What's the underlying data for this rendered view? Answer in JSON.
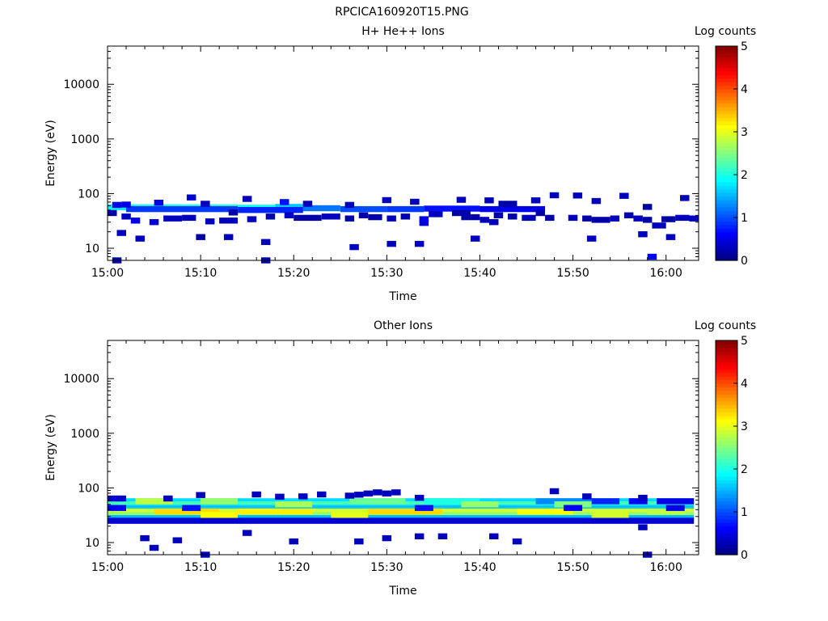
{
  "page_title": "RPCICA160920T15.PNG",
  "chart_data": [
    {
      "type": "heatmap",
      "title": "H+ He++ Ions",
      "xlabel": "Time",
      "ylabel": "Energy (eV)",
      "x_ticks": [
        "15:00",
        "15:10",
        "15:20",
        "15:30",
        "15:40",
        "15:50",
        "16:00"
      ],
      "xlim_minutes_after_1500": [
        0,
        63.5
      ],
      "y_scale": "log",
      "ylim": [
        6,
        50000
      ],
      "y_ticks": [
        10,
        100,
        1000,
        10000
      ],
      "y_tick_labels": [
        "10",
        "100",
        "1000",
        "10000"
      ],
      "colorbar": {
        "label": "Log counts",
        "range": [
          0,
          5
        ],
        "ticks": [
          "0",
          "1",
          "2",
          "3",
          "4",
          "5"
        ],
        "colormap": "jet"
      },
      "cells": [
        [
          0,
          2,
          56,
          1.8
        ],
        [
          2,
          8,
          56,
          2.0
        ],
        [
          8,
          14,
          56,
          2.1
        ],
        [
          14,
          18,
          55,
          1.9
        ],
        [
          18,
          21,
          57,
          1.6
        ],
        [
          21,
          25,
          54,
          1.2
        ],
        [
          25,
          30,
          52,
          1.0
        ],
        [
          30,
          34,
          52,
          0.9
        ],
        [
          34,
          40,
          53,
          0.7
        ],
        [
          40,
          47,
          52,
          0.5
        ],
        [
          2,
          14,
          52,
          0.9
        ],
        [
          14,
          21,
          50,
          0.8
        ],
        [
          0.5,
          1.5,
          62,
          0.5
        ],
        [
          1.5,
          2.5,
          63,
          0.5
        ],
        [
          5,
          6,
          68,
          0.5
        ],
        [
          8.5,
          9.5,
          85,
          0.4
        ],
        [
          10,
          11,
          65,
          0.3
        ],
        [
          14.5,
          15.5,
          80,
          0.3
        ],
        [
          18.5,
          19.5,
          70,
          0.7
        ],
        [
          21,
          22,
          65,
          0.3
        ],
        [
          25.5,
          26.5,
          62,
          0.3
        ],
        [
          29.5,
          30.5,
          76,
          0.3
        ],
        [
          32.5,
          33.5,
          71,
          0.3
        ],
        [
          37.5,
          38.5,
          77,
          0.3
        ],
        [
          40.5,
          41.5,
          75,
          0.3
        ],
        [
          42,
          44,
          65,
          0.2
        ],
        [
          45.5,
          46.5,
          75,
          0.3
        ],
        [
          47.5,
          48.5,
          93,
          0.3
        ],
        [
          50,
          51,
          92,
          0.3
        ],
        [
          52,
          53,
          73,
          0.3
        ],
        [
          55,
          56,
          91,
          0.3
        ],
        [
          57.5,
          58.5,
          57,
          0.2
        ],
        [
          61.5,
          62.5,
          83,
          0.3
        ],
        [
          0,
          1,
          44,
          0.2
        ],
        [
          1.5,
          2.5,
          38,
          0.3
        ],
        [
          2.5,
          3.5,
          32,
          0.5
        ],
        [
          4.5,
          5.5,
          30,
          0.4
        ],
        [
          6,
          8,
          35,
          0.3
        ],
        [
          8,
          9.5,
          36,
          0.3
        ],
        [
          10.5,
          11.5,
          31,
          0.3
        ],
        [
          12,
          14,
          32,
          0.3
        ],
        [
          13,
          14,
          45,
          0.2
        ],
        [
          15,
          16,
          34,
          0.3
        ],
        [
          17,
          18,
          38,
          0.2
        ],
        [
          19,
          20,
          40,
          0.3
        ],
        [
          20,
          23,
          36,
          0.2
        ],
        [
          23,
          25,
          38,
          0.3
        ],
        [
          25.5,
          26.5,
          35,
          0.2
        ],
        [
          27,
          28,
          40,
          0.2
        ],
        [
          28,
          29.5,
          37,
          0.2
        ],
        [
          30,
          31,
          35,
          0.3
        ],
        [
          31.5,
          32.5,
          38,
          0.2
        ],
        [
          33.5,
          34.5,
          34,
          0.5
        ],
        [
          33.5,
          34.5,
          29,
          0.5
        ],
        [
          34.5,
          36,
          42,
          0.3
        ],
        [
          37,
          39,
          44,
          0.2
        ],
        [
          38,
          40,
          37,
          0.2
        ],
        [
          40,
          41,
          33,
          0.3
        ],
        [
          41,
          42,
          30,
          0.3
        ],
        [
          41.5,
          42.5,
          40,
          0.2
        ],
        [
          43,
          44,
          38,
          0.2
        ],
        [
          44.5,
          46,
          36,
          0.3
        ],
        [
          46,
          47,
          44,
          0.2
        ],
        [
          47,
          48,
          36,
          0.2
        ],
        [
          49.5,
          50.5,
          36,
          0.3
        ],
        [
          51,
          52,
          35,
          0.2
        ],
        [
          52,
          54,
          33,
          0.2
        ],
        [
          54,
          55,
          35,
          0.3
        ],
        [
          55.5,
          56.5,
          40,
          0.2
        ],
        [
          56.5,
          57.5,
          35,
          0.3
        ],
        [
          57.5,
          58.5,
          33,
          0.2
        ],
        [
          58.5,
          60,
          26,
          0.3
        ],
        [
          59.5,
          61,
          34,
          0.2
        ],
        [
          61,
          62.5,
          36,
          0.3
        ],
        [
          62.5,
          63.5,
          35,
          0.3
        ],
        [
          1,
          2,
          19,
          0.3
        ],
        [
          3,
          4,
          15,
          0.3
        ],
        [
          9.5,
          10.5,
          16,
          0.2
        ],
        [
          12.5,
          13.5,
          16,
          0.3
        ],
        [
          16.5,
          17.5,
          13,
          0.3
        ],
        [
          26,
          27,
          10.5,
          0.3
        ],
        [
          30,
          31,
          12,
          0.3
        ],
        [
          33,
          34,
          12,
          0.3
        ],
        [
          39,
          40,
          15,
          0.3
        ],
        [
          51.5,
          52.5,
          15,
          0.3
        ],
        [
          57,
          58,
          18,
          0.3
        ],
        [
          58,
          59,
          7,
          0.6
        ],
        [
          60,
          61,
          16,
          0.3
        ],
        [
          0.5,
          1.5,
          6,
          0.2
        ],
        [
          16.5,
          17.5,
          6,
          0.2
        ]
      ]
    },
    {
      "type": "heatmap",
      "title": "Other Ions",
      "xlabel": "Time",
      "ylabel": "Energy (eV)",
      "x_ticks": [
        "15:00",
        "15:10",
        "15:20",
        "15:30",
        "15:40",
        "15:50",
        "16:00"
      ],
      "xlim_minutes_after_1500": [
        0,
        63.5
      ],
      "y_scale": "log",
      "ylim": [
        6,
        50000
      ],
      "y_ticks": [
        10,
        100,
        1000,
        10000
      ],
      "y_tick_labels": [
        "10",
        "100",
        "1000",
        "10000"
      ],
      "colorbar": {
        "label": "Log counts",
        "range": [
          0,
          5
        ],
        "ticks": [
          "0",
          "1",
          "2",
          "3",
          "4",
          "5"
        ],
        "colormap": "jet"
      },
      "cells": [
        [
          0,
          63,
          57,
          1.7
        ],
        [
          0,
          63,
          50,
          2.2
        ],
        [
          0,
          63,
          43,
          1.6
        ],
        [
          0,
          63,
          37,
          2.9
        ],
        [
          0,
          63,
          32,
          2.6
        ],
        [
          0,
          63,
          28,
          1.5
        ],
        [
          0,
          63,
          25,
          0.4
        ],
        [
          3,
          7,
          57,
          2.8
        ],
        [
          10,
          14,
          57,
          2.6
        ],
        [
          26,
          32,
          57,
          2.4
        ],
        [
          34,
          40,
          57,
          2.0
        ],
        [
          46,
          52,
          57,
          1.3
        ],
        [
          52,
          55,
          57,
          0.8
        ],
        [
          56,
          58,
          57,
          0.6
        ],
        [
          59,
          63,
          57,
          0.5
        ],
        [
          18,
          22,
          50,
          2.7
        ],
        [
          38,
          42,
          50,
          2.6
        ],
        [
          48,
          52,
          50,
          2.5
        ],
        [
          5,
          12,
          37,
          3.3
        ],
        [
          14,
          22,
          37,
          3.2
        ],
        [
          28,
          36,
          37,
          3.3
        ],
        [
          44,
          50,
          37,
          3.1
        ],
        [
          58,
          62,
          37,
          2.8
        ],
        [
          10,
          14,
          32,
          3.1
        ],
        [
          24,
          28,
          32,
          3.0
        ],
        [
          52,
          56,
          32,
          2.9
        ],
        [
          0,
          2,
          43,
          0.6
        ],
        [
          8,
          10,
          43,
          0.7
        ],
        [
          33,
          35,
          43,
          0.7
        ],
        [
          49,
          51,
          43,
          0.6
        ],
        [
          60,
          62,
          43,
          0.5
        ],
        [
          0,
          2,
          64,
          0.4
        ],
        [
          6,
          7,
          64,
          0.3
        ],
        [
          9.5,
          10.5,
          74,
          0.3
        ],
        [
          15.5,
          16.5,
          76,
          0.3
        ],
        [
          18,
          19,
          69,
          0.3
        ],
        [
          20.5,
          21.5,
          70,
          0.3
        ],
        [
          22.5,
          23.5,
          76,
          0.3
        ],
        [
          25.5,
          26.5,
          72,
          0.3
        ],
        [
          26.5,
          27.5,
          75,
          0.3
        ],
        [
          27.5,
          28.5,
          79,
          0.3
        ],
        [
          28.5,
          29.5,
          83,
          0.3
        ],
        [
          29.5,
          30.5,
          79,
          0.3
        ],
        [
          30.5,
          31.5,
          83,
          0.3
        ],
        [
          33,
          34,
          66,
          0.3
        ],
        [
          47.5,
          48.5,
          87,
          0.3
        ],
        [
          51,
          52,
          70,
          0.3
        ],
        [
          57,
          58,
          66,
          0.3
        ],
        [
          3.5,
          4.5,
          12,
          0.3
        ],
        [
          4.5,
          5.5,
          8,
          0.3
        ],
        [
          7,
          8,
          11,
          0.3
        ],
        [
          10,
          11,
          6,
          0.3
        ],
        [
          14.5,
          15.5,
          15,
          0.3
        ],
        [
          19.5,
          20.5,
          10.5,
          0.3
        ],
        [
          26.5,
          27.5,
          10.5,
          0.3
        ],
        [
          29.5,
          30.5,
          12,
          0.3
        ],
        [
          33,
          34,
          13,
          0.3
        ],
        [
          35.5,
          36.5,
          13,
          0.3
        ],
        [
          41,
          42,
          13,
          0.3
        ],
        [
          43.5,
          44.5,
          10.5,
          0.3
        ],
        [
          57,
          58,
          19,
          0.3
        ],
        [
          57.5,
          58.5,
          6,
          0.3
        ]
      ]
    }
  ]
}
